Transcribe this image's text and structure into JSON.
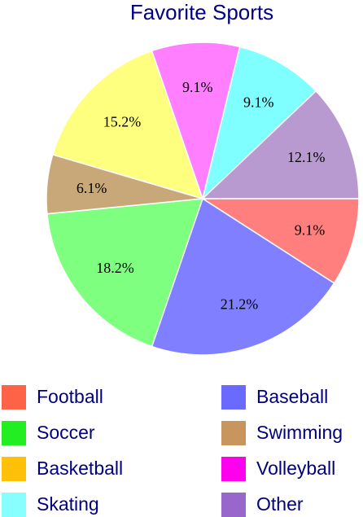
{
  "chart_data": {
    "type": "pie",
    "title": "Favorite Sports",
    "legend_position": "bottom",
    "slices": [
      {
        "name": "Football",
        "label": "9.1%",
        "value": 9.1,
        "color": "#ff7f7f",
        "legend_color": "#ff6347"
      },
      {
        "name": "Baseball",
        "label": "21.2%",
        "value": 21.2,
        "color": "#7f7fff",
        "legend_color": "#6a6aff"
      },
      {
        "name": "Soccer",
        "label": "18.2%",
        "value": 18.2,
        "color": "#7fff7f",
        "legend_color": "#22ee22"
      },
      {
        "name": "Swimming",
        "label": "6.1%",
        "value": 6.1,
        "color": "#c8a878",
        "legend_color": "#c8955f"
      },
      {
        "name": "Basketball",
        "label": "15.2%",
        "value": 15.2,
        "color": "#ffff7f",
        "legend_color": "#ffc107"
      },
      {
        "name": "Volleyball",
        "label": "9.1%",
        "value": 9.1,
        "color": "#ff7fff",
        "legend_color": "#ff00ee"
      },
      {
        "name": "Skating",
        "label": "9.1%",
        "value": 9.1,
        "color": "#7fffff",
        "legend_color": "#88ffff"
      },
      {
        "name": "Other",
        "label": "12.1%",
        "value": 12.1,
        "color": "#b99ad0",
        "legend_color": "#9966cc"
      }
    ],
    "drawing_order": [
      "Football",
      "Baseball",
      "Soccer",
      "Swimming",
      "Basketball",
      "Volleyball",
      "Skating",
      "Other"
    ]
  }
}
